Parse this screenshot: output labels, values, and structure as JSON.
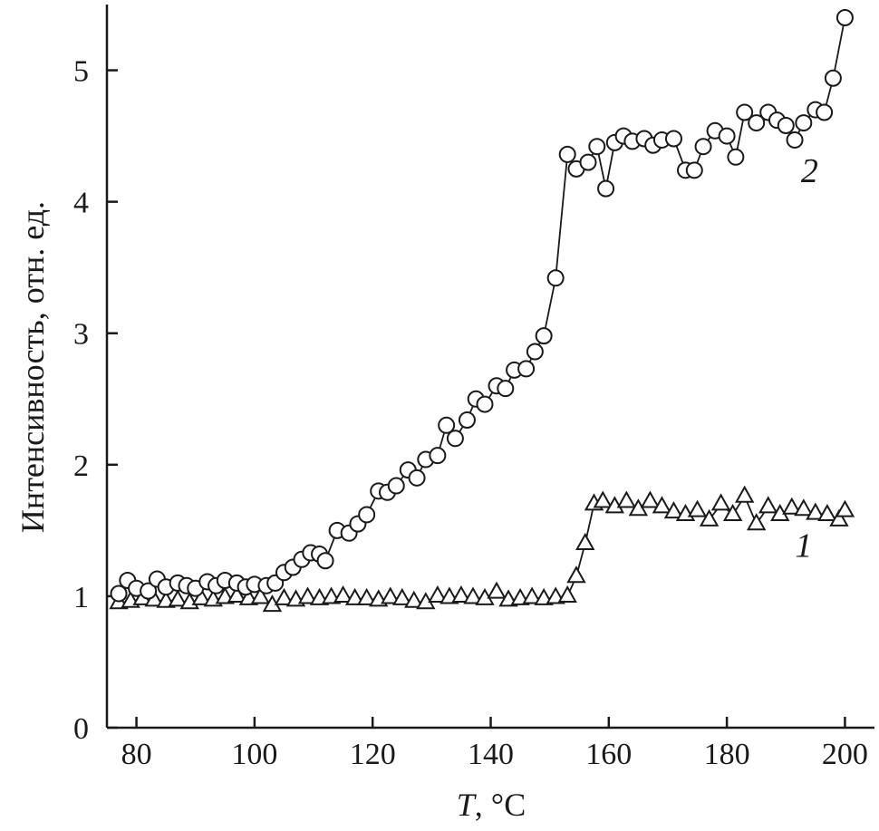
{
  "chart_data": {
    "type": "scatter",
    "xlabel": "T, °C",
    "ylabel": "Интенсивность, отн. ед.",
    "xlim": [
      75,
      205
    ],
    "ylim": [
      0,
      5.5
    ],
    "xticks": [
      80,
      100,
      120,
      140,
      160,
      180,
      200
    ],
    "yticks": [
      0,
      1,
      2,
      3,
      4,
      5
    ],
    "grid": false,
    "series": [
      {
        "name": "1",
        "marker": "triangle",
        "x": [
          77,
          79,
          81,
          83,
          85,
          87,
          89,
          91,
          93,
          95,
          97,
          99,
          101,
          103,
          105,
          107,
          109,
          111,
          113,
          115,
          117,
          119,
          121,
          123,
          125,
          127,
          129,
          131,
          133,
          135,
          137,
          139,
          141,
          143,
          145,
          147,
          149,
          151,
          153,
          154.5,
          156,
          157.5,
          159,
          161,
          163,
          165,
          167,
          169,
          171,
          173,
          175,
          177,
          179,
          181,
          183,
          185,
          187,
          189,
          191,
          193,
          195,
          197,
          199,
          200
        ],
        "y": [
          0.95,
          0.96,
          0.98,
          0.97,
          0.96,
          0.97,
          0.95,
          0.98,
          0.97,
          0.99,
          1.0,
          0.98,
          0.99,
          0.93,
          0.98,
          0.97,
          0.99,
          0.98,
          0.99,
          1.0,
          0.98,
          0.98,
          0.97,
          0.99,
          0.98,
          0.96,
          0.95,
          1.0,
          0.99,
          1.0,
          0.99,
          0.98,
          1.03,
          0.97,
          0.98,
          0.99,
          0.98,
          0.99,
          1.0,
          1.15,
          1.4,
          1.7,
          1.72,
          1.68,
          1.72,
          1.66,
          1.72,
          1.68,
          1.64,
          1.62,
          1.65,
          1.58,
          1.7,
          1.62,
          1.76,
          1.55,
          1.68,
          1.62,
          1.67,
          1.66,
          1.63,
          1.62,
          1.58,
          1.65
        ]
      },
      {
        "name": "2",
        "marker": "circle",
        "x": [
          77,
          78.5,
          80,
          82,
          83.5,
          85,
          87,
          88.5,
          90,
          92,
          93.5,
          95,
          97,
          98.5,
          100,
          102,
          103.5,
          105,
          106.5,
          108,
          109.5,
          111,
          112,
          114,
          116,
          117.5,
          119,
          121,
          122.5,
          124,
          126,
          127.5,
          129,
          131,
          132.5,
          134,
          136,
          137.5,
          139,
          141,
          142.5,
          144,
          146,
          147.5,
          149,
          151,
          153,
          154.5,
          156.5,
          158,
          159.5,
          161,
          162.5,
          164,
          166,
          167.5,
          169,
          171,
          173,
          174.5,
          176,
          178,
          180,
          181.5,
          183,
          185,
          187,
          188.5,
          190,
          191.5,
          193,
          195,
          196.5,
          198,
          200
        ],
        "y": [
          1.02,
          1.12,
          1.06,
          1.04,
          1.13,
          1.07,
          1.1,
          1.08,
          1.06,
          1.11,
          1.08,
          1.12,
          1.1,
          1.07,
          1.09,
          1.08,
          1.1,
          1.18,
          1.22,
          1.28,
          1.33,
          1.32,
          1.27,
          1.5,
          1.48,
          1.55,
          1.62,
          1.8,
          1.79,
          1.84,
          1.96,
          1.9,
          2.04,
          2.07,
          2.3,
          2.2,
          2.34,
          2.5,
          2.46,
          2.6,
          2.58,
          2.72,
          2.73,
          2.86,
          2.98,
          3.42,
          4.36,
          4.25,
          4.3,
          4.42,
          4.1,
          4.45,
          4.5,
          4.46,
          4.48,
          4.43,
          4.47,
          4.48,
          4.24,
          4.24,
          4.42,
          4.54,
          4.5,
          4.34,
          4.68,
          4.6,
          4.68,
          4.62,
          4.58,
          4.47,
          4.6,
          4.7,
          4.68,
          4.94,
          5.4
        ]
      }
    ]
  }
}
